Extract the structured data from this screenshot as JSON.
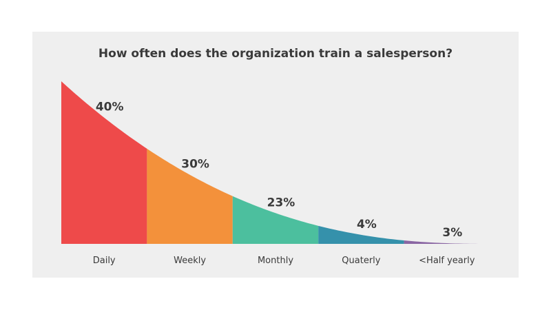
{
  "chart_data": {
    "type": "area",
    "title": "How often does the organization train a salesperson?",
    "categories": [
      "Daily",
      "Weekly",
      "Monthly",
      "Quaterly",
      "<Half yearly"
    ],
    "values": [
      40,
      30,
      23,
      4,
      3
    ],
    "value_labels": [
      "40%",
      "30%",
      "23%",
      "4%",
      "3%"
    ],
    "colors": [
      "#ee4a4a",
      "#f3913b",
      "#4cbf9e",
      "#3591ab",
      "#8a66a3"
    ],
    "xlabel": "",
    "ylabel": "",
    "grid": false,
    "legend": "none"
  }
}
